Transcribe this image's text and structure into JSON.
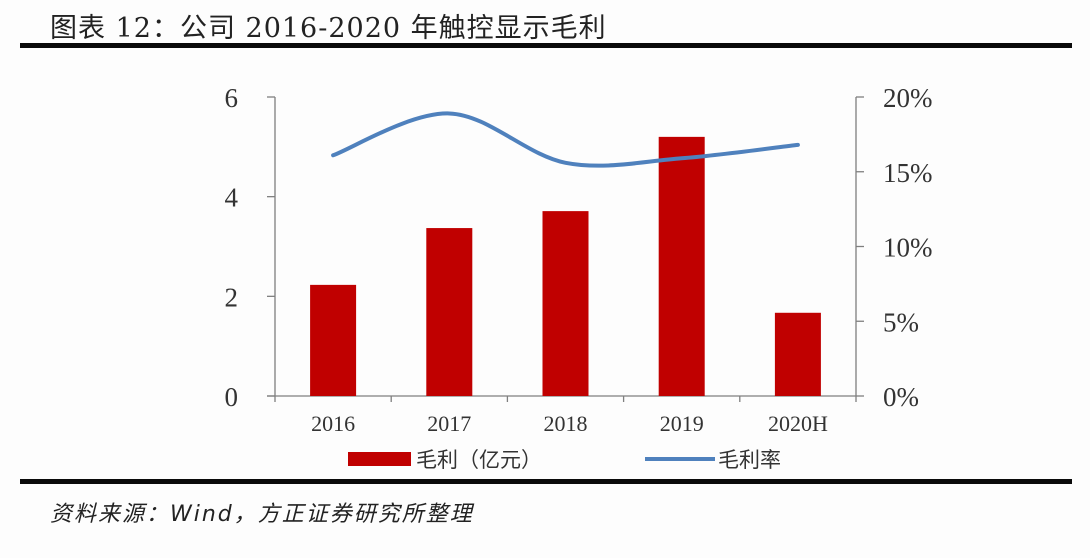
{
  "figure": {
    "title": "图表 12：公司 2016-2020 年触控显示毛利",
    "source": "资料来源：Wind，方正证券研究所整理"
  },
  "colors": {
    "bar": "#c00000",
    "line": "#4f81bd",
    "axis": "#7f7f7f",
    "rule": "#0a0a0a"
  },
  "legend": {
    "bar_label": "毛利（亿元）",
    "line_label": "毛利率"
  },
  "chart_data": {
    "type": "bar+line",
    "title": "图表 12：公司 2016-2020 年触控显示毛利",
    "categories": [
      "2016",
      "2017",
      "2018",
      "2019",
      "2020H"
    ],
    "series": [
      {
        "name": "毛利（亿元）",
        "type": "bar",
        "axis": "left",
        "values": [
          2.23,
          3.37,
          3.71,
          5.2,
          1.67
        ]
      },
      {
        "name": "毛利率",
        "type": "line",
        "axis": "right",
        "smooth": true,
        "values": [
          0.161,
          0.189,
          0.156,
          0.159,
          0.168
        ]
      }
    ],
    "left_axis": {
      "ylim": [
        0,
        6
      ],
      "ticks": [
        "0",
        "2",
        "4",
        "6"
      ]
    },
    "right_axis": {
      "ylim": [
        0,
        0.2
      ],
      "ticks": [
        "0%",
        "5%",
        "10%",
        "15%",
        "20%"
      ]
    },
    "xlabel": "",
    "ylabel": "",
    "grid": false,
    "legend_position": "bottom"
  }
}
